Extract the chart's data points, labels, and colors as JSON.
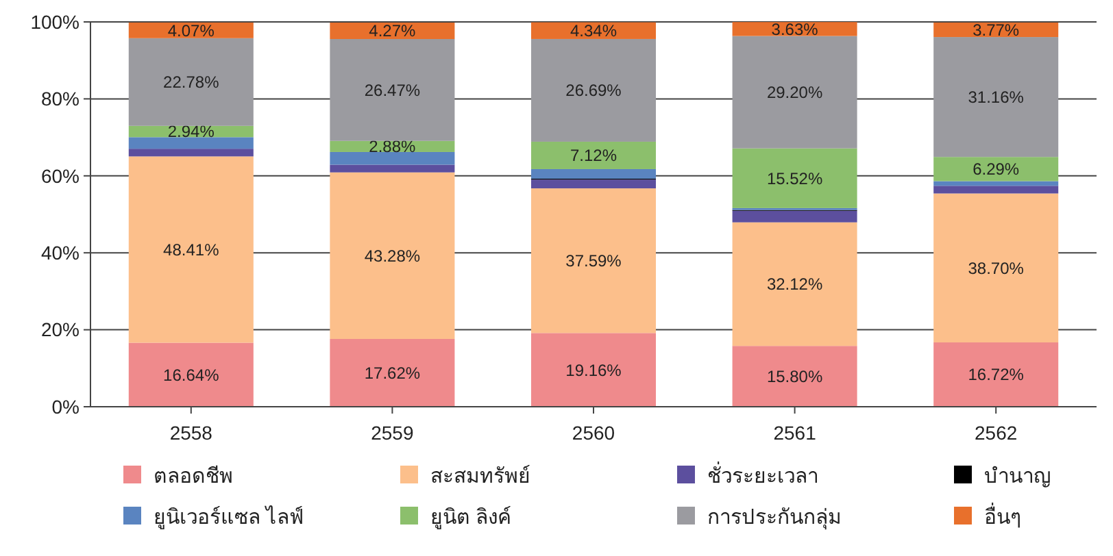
{
  "chart_data": {
    "type": "bar",
    "stacked": true,
    "categories": [
      "2558",
      "2559",
      "2560",
      "2561",
      "2562"
    ],
    "series": [
      {
        "name": "ตลอดชีพ",
        "color": "#ef8a8c",
        "values": [
          16.64,
          17.62,
          19.16,
          15.8,
          16.72
        ],
        "value_labels": [
          "16.64%",
          "17.62%",
          "19.16%",
          "15.80%",
          "16.72%"
        ]
      },
      {
        "name": "สะสมทรัพย์",
        "color": "#fcbf8b",
        "values": [
          48.41,
          43.28,
          37.59,
          32.12,
          38.7
        ],
        "value_labels": [
          "48.41%",
          "43.28%",
          "37.59%",
          "32.12%",
          "38.70%"
        ]
      },
      {
        "name": "ชั่วระยะเวลา",
        "color": "#5c4f9e",
        "values": [
          2.0,
          2.0,
          2.3,
          3.0,
          2.0
        ]
      },
      {
        "name": "บำนาญ",
        "color": "#000000",
        "values": [
          null,
          null,
          0.2,
          0.2,
          null
        ]
      },
      {
        "name": "ยูนิเวอร์แซล ไลฟ์",
        "color": "#5a84c0",
        "values": [
          3.0,
          3.3,
          2.5,
          0.5,
          1.2
        ]
      },
      {
        "name": "ยูนิต ลิงค์",
        "color": "#8cbf6c",
        "values": [
          2.94,
          2.88,
          7.12,
          15.52,
          6.29
        ],
        "value_labels": [
          "2.94%",
          "2.88%",
          "7.12%",
          "15.52%",
          "6.29%"
        ]
      },
      {
        "name": "การประกันกลุ่ม",
        "color": "#9b9ba0",
        "values": [
          22.78,
          26.47,
          26.69,
          29.2,
          31.16
        ],
        "value_labels": [
          "22.78%",
          "26.47%",
          "26.69%",
          "29.20%",
          "31.16%"
        ]
      },
      {
        "name": "อื่นๆ",
        "color": "#e8702c",
        "values": [
          4.07,
          4.27,
          4.34,
          3.63,
          3.77
        ],
        "value_labels": [
          "4.07%",
          "4.27%",
          "4.34%",
          "3.63%",
          "3.77%"
        ]
      }
    ],
    "ylim": [
      0,
      100
    ],
    "yticks": [
      {
        "value": 0,
        "label": "0%"
      },
      {
        "value": 20,
        "label": "20%"
      },
      {
        "value": 40,
        "label": "40%"
      },
      {
        "value": 60,
        "label": "60%"
      },
      {
        "value": 80,
        "label": "80%"
      },
      {
        "value": 100,
        "label": "100%"
      }
    ],
    "grid": "y",
    "legend": "bottom"
  }
}
